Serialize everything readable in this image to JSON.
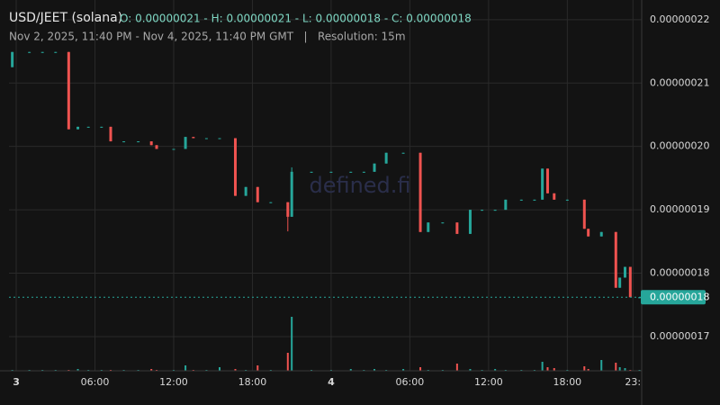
{
  "chart_data": {
    "type": "candlestick",
    "title": "USD/JEET (solana)",
    "ohlc_summary": "O: 0.00000021 - H: 0.00000021 - L: 0.00000018 - C: 0.00000018",
    "subtitle": "Nov 2, 2025, 11:40 PM - Nov 4, 2025, 11:40 PM GMT   |   Resolution: 15m",
    "watermark": "defined.fi",
    "x": [
      -0.3,
      1,
      2,
      3,
      4,
      4.7,
      5.5,
      6.5,
      7.2,
      8.2,
      9.3,
      10.3,
      10.7,
      12,
      12.9,
      13.5,
      14.5,
      15.5,
      16.7,
      17.5,
      18.4,
      19.4,
      20.7,
      21,
      22.5,
      24,
      25.5,
      26.5,
      27.3,
      28.2,
      29.5,
      30.8,
      31.4,
      32.5,
      33.6,
      34.6,
      35.5,
      36.5,
      37.3,
      38.5,
      39.5,
      40.1,
      40.5,
      41,
      42,
      43.3,
      43.6,
      44.6,
      45.7,
      46,
      46.4,
      46.8,
      47.5
    ],
    "open": [
      2.125e-07,
      2.149e-07,
      2.149e-07,
      2.149e-07,
      2.149e-07,
      2.027e-07,
      2.031e-07,
      2.031e-07,
      2.031e-07,
      2.008e-07,
      2.008e-07,
      2.008e-07,
      2.002e-07,
      1.996e-07,
      1.996e-07,
      2.015e-07,
      2.013e-07,
      2.013e-07,
      2.013e-07,
      1.922e-07,
      1.936e-07,
      1.912e-07,
      1.912e-07,
      1.889e-07,
      1.96e-07,
      1.96e-07,
      1.96e-07,
      1.96e-07,
      1.96e-07,
      1.973e-07,
      1.99e-07,
      1.99e-07,
      1.865e-07,
      1.88e-07,
      1.88e-07,
      1.862e-07,
      1.9e-07,
      1.9e-07,
      1.9e-07,
      1.916e-07,
      1.916e-07,
      1.916e-07,
      1.965e-07,
      1.926e-07,
      1.916e-07,
      1.916e-07,
      1.87e-07,
      1.858e-07,
      1.865e-07,
      1.777e-07,
      1.793e-07,
      1.81e-07,
      1.762e-07
    ],
    "high": [
      2.149e-07,
      2.149e-07,
      2.149e-07,
      2.149e-07,
      2.149e-07,
      2.031e-07,
      2.031e-07,
      2.031e-07,
      2.031e-07,
      2.008e-07,
      2.008e-07,
      2.008e-07,
      2.002e-07,
      1.996e-07,
      2.015e-07,
      2.015e-07,
      2.013e-07,
      2.013e-07,
      2.013e-07,
      1.936e-07,
      1.936e-07,
      1.912e-07,
      1.912e-07,
      1.967e-07,
      1.96e-07,
      1.96e-07,
      1.96e-07,
      1.96e-07,
      1.973e-07,
      1.99e-07,
      1.99e-07,
      1.99e-07,
      1.88e-07,
      1.88e-07,
      1.88e-07,
      1.9e-07,
      1.9e-07,
      1.9e-07,
      1.916e-07,
      1.916e-07,
      1.916e-07,
      1.965e-07,
      1.965e-07,
      1.926e-07,
      1.916e-07,
      1.916e-07,
      1.87e-07,
      1.865e-07,
      1.865e-07,
      1.793e-07,
      1.81e-07,
      1.81e-07,
      1.762e-07
    ],
    "low": [
      2.125e-07,
      2.149e-07,
      2.149e-07,
      2.149e-07,
      2.027e-07,
      2.027e-07,
      2.031e-07,
      2.031e-07,
      2.008e-07,
      2.008e-07,
      2.008e-07,
      2.002e-07,
      1.996e-07,
      1.996e-07,
      1.996e-07,
      2.013e-07,
      2.013e-07,
      2.013e-07,
      1.922e-07,
      1.922e-07,
      1.912e-07,
      1.912e-07,
      1.866e-07,
      1.889e-07,
      1.96e-07,
      1.96e-07,
      1.96e-07,
      1.96e-07,
      1.96e-07,
      1.973e-07,
      1.99e-07,
      1.865e-07,
      1.865e-07,
      1.88e-07,
      1.862e-07,
      1.862e-07,
      1.9e-07,
      1.9e-07,
      1.9e-07,
      1.916e-07,
      1.916e-07,
      1.916e-07,
      1.926e-07,
      1.916e-07,
      1.916e-07,
      1.87e-07,
      1.858e-07,
      1.858e-07,
      1.777e-07,
      1.777e-07,
      1.793e-07,
      1.762e-07,
      1.762e-07
    ],
    "close": [
      2.149e-07,
      2.149e-07,
      2.149e-07,
      2.149e-07,
      2.027e-07,
      2.031e-07,
      2.031e-07,
      2.031e-07,
      2.008e-07,
      2.008e-07,
      2.008e-07,
      2.002e-07,
      1.996e-07,
      1.996e-07,
      2.015e-07,
      2.013e-07,
      2.013e-07,
      2.013e-07,
      1.922e-07,
      1.936e-07,
      1.912e-07,
      1.912e-07,
      1.889e-07,
      1.96e-07,
      1.96e-07,
      1.96e-07,
      1.96e-07,
      1.96e-07,
      1.973e-07,
      1.99e-07,
      1.99e-07,
      1.865e-07,
      1.88e-07,
      1.88e-07,
      1.862e-07,
      1.9e-07,
      1.9e-07,
      1.9e-07,
      1.916e-07,
      1.916e-07,
      1.916e-07,
      1.965e-07,
      1.926e-07,
      1.916e-07,
      1.916e-07,
      1.87e-07,
      1.858e-07,
      1.865e-07,
      1.777e-07,
      1.793e-07,
      1.81e-07,
      1.762e-07,
      1.762e-07
    ],
    "volume": [
      1,
      1,
      1,
      1,
      1,
      2,
      1,
      1,
      1,
      1,
      1,
      2,
      1,
      1,
      6,
      1,
      1,
      4,
      2,
      1,
      6,
      1,
      20,
      60,
      1,
      1,
      2,
      1,
      2,
      1,
      2,
      4,
      1,
      1,
      8,
      2,
      1,
      2,
      1,
      1,
      1,
      10,
      4,
      3,
      1,
      5,
      2,
      12,
      9,
      4,
      3,
      1,
      1
    ],
    "xlim": [
      -0.55,
      47.67
    ],
    "xticks": [
      {
        "value": 0,
        "label": "3"
      },
      {
        "value": 6,
        "label": "06:00"
      },
      {
        "value": 12,
        "label": "12:00"
      },
      {
        "value": 18,
        "label": "18:00"
      },
      {
        "value": 24,
        "label": "4"
      },
      {
        "value": 30,
        "label": "06:00"
      },
      {
        "value": 36,
        "label": "12:00"
      },
      {
        "value": 42,
        "label": "18:00"
      },
      {
        "value": 47,
        "label": "23:"
      }
    ],
    "ylim": [
      1.646e-07,
      2.231e-07
    ],
    "yticks": [
      {
        "value": 1.7e-07,
        "label": "0.00000017"
      },
      {
        "value": 1.8e-07,
        "label": "0.00000018"
      },
      {
        "value": 1.9e-07,
        "label": "0.00000019"
      },
      {
        "value": 2e-07,
        "label": "0.00000020"
      },
      {
        "value": 2.1e-07,
        "label": "0.00000021"
      },
      {
        "value": 2.2e-07,
        "label": "0.00000022"
      }
    ],
    "last_price": {
      "value": 1.762e-07,
      "label": "0.00000018"
    },
    "up_color": "#26a69a",
    "down_color": "#ef5350",
    "grid": true
  }
}
